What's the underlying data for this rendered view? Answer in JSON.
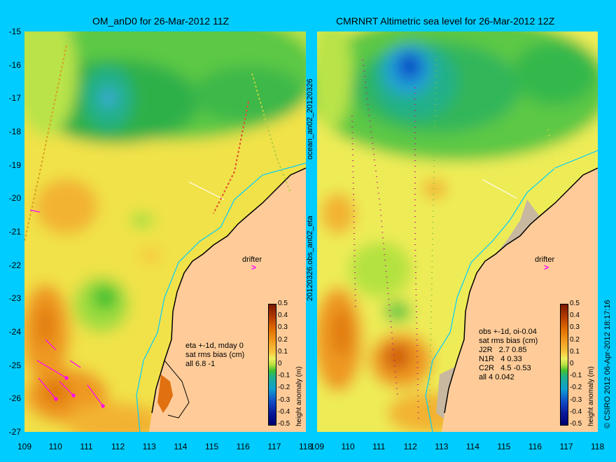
{
  "titles": {
    "left": "OM_anD0 for 26-Mar-2012 11Z",
    "right": "CMRNRT Altimetric sea level  for 26-Mar-2012 12Z"
  },
  "axes": {
    "lat_ticks": [
      "-15",
      "-16",
      "-17",
      "-18",
      "-19",
      "-20",
      "-21",
      "-22",
      "-23",
      "-24",
      "-25",
      "-26",
      "-27"
    ],
    "lon_ticks_left": [
      "109",
      "110",
      "111",
      "112",
      "113",
      "114",
      "115",
      "116",
      "117",
      "118"
    ],
    "lon_ticks_right": [
      "109",
      "110",
      "111",
      "112",
      "113",
      "114",
      "115",
      "116",
      "117",
      "118"
    ]
  },
  "side_labels": {
    "upper": "ocean_an02_20120326",
    "lower": "20120326.obs_an02_eta",
    "credit": "© CSIRO 2012   06-Apr-2012 18:17:16"
  },
  "stats_left": "eta +-1d, mday 0\nsat rms bias (cm)\nall 6.8 -1",
  "stats_right": "obs +-1d, oi-0.04\nsat rms bias (cm)\nJ2R   2.7 0.85\nN1R   4 0.33\nC2R   4.5 -0.53\nall 4 0.042",
  "drifter_label": "drifter",
  "colorbar": {
    "title": "height anomaly (m)",
    "ticks": [
      "0.5",
      "0.4",
      "0.3",
      "0.2",
      "0.1",
      "0",
      "-0.1",
      "-0.2",
      "-0.3",
      "-0.4",
      "-0.5"
    ],
    "range": [
      -0.5,
      0.5
    ]
  },
  "colors": {
    "background": "#00ccff",
    "land": "#ffcc99",
    "drifter_arrow": "#ff00ff",
    "coast_contour": "#00ccff"
  }
}
